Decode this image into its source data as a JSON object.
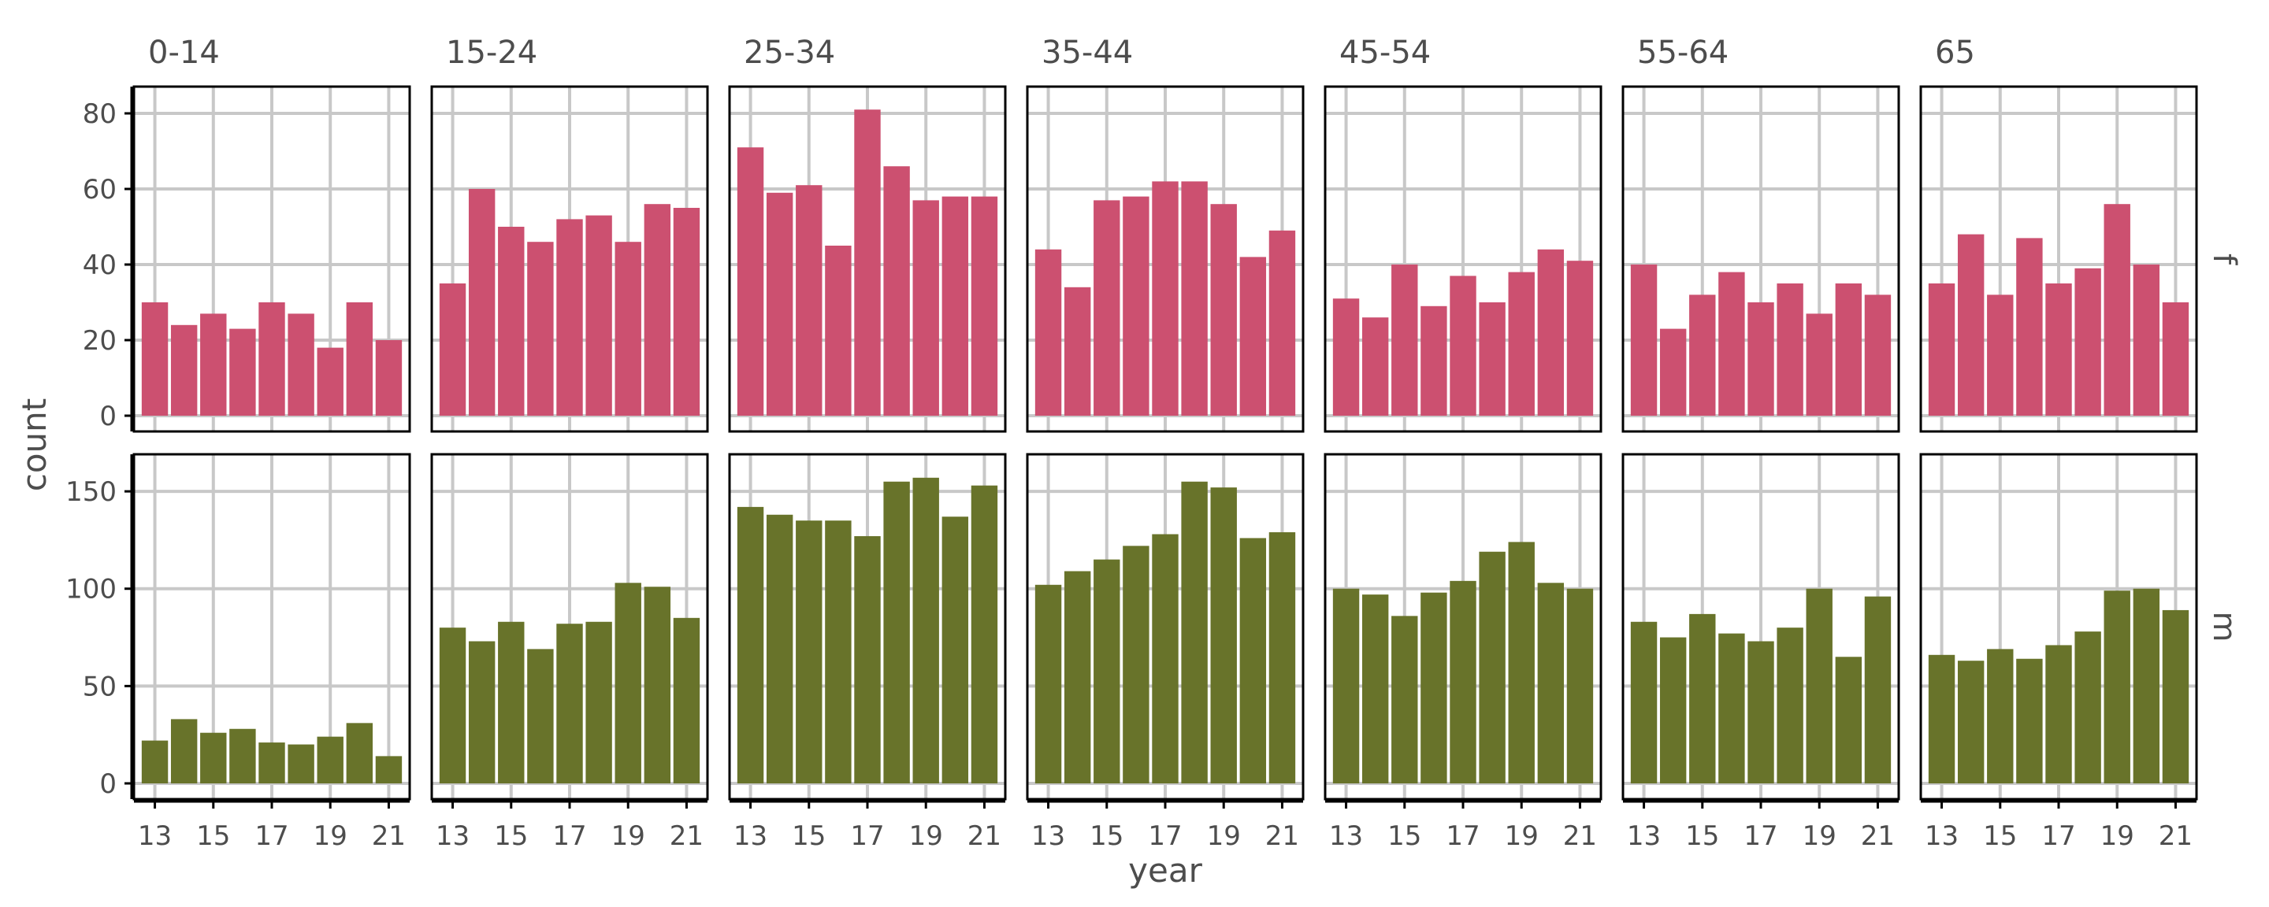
{
  "chart_data": {
    "type": "bar",
    "xlabel": "year",
    "ylabel": "count",
    "x": [
      13,
      14,
      15,
      16,
      17,
      18,
      19,
      20,
      21
    ],
    "x_ticks": [
      "13",
      "15",
      "17",
      "19",
      "21"
    ],
    "facet_cols": [
      "0-14",
      "15-24",
      "25-34",
      "35-44",
      "45-54",
      "55-64",
      "65"
    ],
    "grid": true,
    "rows": [
      {
        "label": "f",
        "color": "#cc5070",
        "ylim": [
          0,
          85
        ],
        "y_ticks": [
          0,
          20,
          40,
          60,
          80
        ],
        "panels": [
          {
            "name": "0-14",
            "values": [
              30,
              24,
              27,
              23,
              30,
              27,
              18,
              30,
              20
            ]
          },
          {
            "name": "15-24",
            "values": [
              35,
              60,
              50,
              46,
              52,
              53,
              46,
              56,
              55
            ]
          },
          {
            "name": "25-34",
            "values": [
              71,
              59,
              61,
              45,
              81,
              66,
              57,
              58,
              58
            ]
          },
          {
            "name": "35-44",
            "values": [
              44,
              34,
              57,
              58,
              62,
              62,
              56,
              42,
              49
            ]
          },
          {
            "name": "45-54",
            "values": [
              31,
              26,
              40,
              29,
              37,
              30,
              38,
              44,
              41
            ]
          },
          {
            "name": "55-64",
            "values": [
              40,
              23,
              32,
              38,
              30,
              35,
              27,
              35,
              32
            ]
          },
          {
            "name": "65",
            "values": [
              35,
              48,
              32,
              47,
              35,
              39,
              56,
              40,
              30
            ]
          }
        ]
      },
      {
        "label": "m",
        "color": "#68732a",
        "ylim": [
          0,
          165
        ],
        "y_ticks": [
          0,
          50,
          100,
          150
        ],
        "panels": [
          {
            "name": "0-14",
            "values": [
              22,
              33,
              26,
              28,
              21,
              20,
              24,
              31,
              14
            ]
          },
          {
            "name": "15-24",
            "values": [
              80,
              73,
              83,
              69,
              82,
              83,
              103,
              101,
              85
            ]
          },
          {
            "name": "25-34",
            "values": [
              142,
              138,
              135,
              135,
              127,
              155,
              157,
              137,
              153
            ]
          },
          {
            "name": "35-44",
            "values": [
              102,
              109,
              115,
              122,
              128,
              155,
              152,
              126,
              129
            ]
          },
          {
            "name": "45-54",
            "values": [
              100,
              97,
              86,
              98,
              104,
              119,
              124,
              103,
              100
            ]
          },
          {
            "name": "55-64",
            "values": [
              83,
              75,
              87,
              77,
              73,
              80,
              100,
              65,
              96
            ]
          },
          {
            "name": "65",
            "values": [
              66,
              63,
              69,
              64,
              71,
              78,
              99,
              100,
              89
            ]
          }
        ]
      }
    ]
  }
}
